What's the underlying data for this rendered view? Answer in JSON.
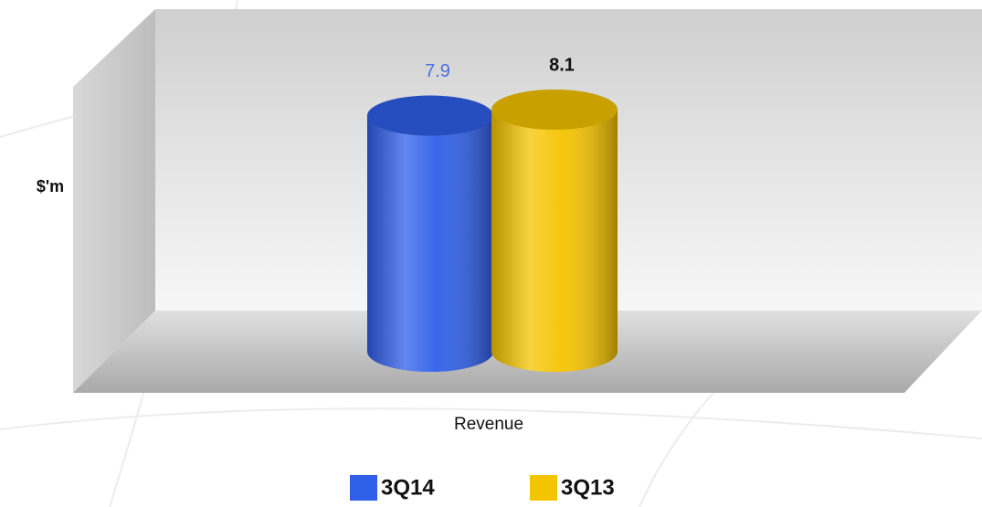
{
  "chart_data": {
    "type": "bar",
    "y_label": "$'m",
    "categories": [
      "Revenue"
    ],
    "series": [
      {
        "name": "3Q14",
        "color": "#2f5fe8",
        "label_color": "#4a6ee0",
        "values": [
          7.9
        ]
      },
      {
        "name": "3Q13",
        "color": "#f5c400",
        "label_color": "#111111",
        "values": [
          8.1
        ]
      }
    ]
  }
}
